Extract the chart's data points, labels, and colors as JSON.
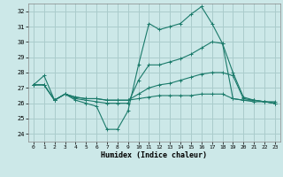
{
  "xlabel": "Humidex (Indice chaleur)",
  "bg_color": "#cce8e8",
  "grid_color": "#aacccc",
  "line_color": "#1a7a6a",
  "xlim": [
    -0.5,
    23.5
  ],
  "ylim": [
    23.5,
    32.5
  ],
  "xticks": [
    0,
    1,
    2,
    3,
    4,
    5,
    6,
    7,
    8,
    9,
    10,
    11,
    12,
    13,
    14,
    15,
    16,
    17,
    18,
    19,
    20,
    21,
    22,
    23
  ],
  "yticks": [
    24,
    25,
    26,
    27,
    28,
    29,
    30,
    31,
    32
  ],
  "lines": [
    {
      "x": [
        0,
        1,
        2,
        3,
        4,
        5,
        6,
        7,
        8,
        9,
        10,
        11,
        12,
        13,
        14,
        15,
        16,
        17,
        18,
        19,
        20,
        21,
        22,
        23
      ],
      "y": [
        27.2,
        27.8,
        26.2,
        26.6,
        26.2,
        26.0,
        25.8,
        24.3,
        24.3,
        25.5,
        28.5,
        31.2,
        30.8,
        31.0,
        31.2,
        31.8,
        32.3,
        31.2,
        29.9,
        28.0,
        26.4,
        26.2,
        26.1,
        26.1
      ],
      "marker": "+"
    },
    {
      "x": [
        0,
        1,
        2,
        3,
        4,
        5,
        6,
        7,
        8,
        9,
        10,
        11,
        12,
        13,
        14,
        15,
        16,
        17,
        18,
        19,
        20,
        21,
        22,
        23
      ],
      "y": [
        27.2,
        27.2,
        26.2,
        26.6,
        26.3,
        26.2,
        26.1,
        26.0,
        26.0,
        26.0,
        27.5,
        28.5,
        28.5,
        28.7,
        28.9,
        29.2,
        29.6,
        30.0,
        29.9,
        26.3,
        26.2,
        26.2,
        26.1,
        26.0
      ],
      "marker": "+"
    },
    {
      "x": [
        0,
        1,
        2,
        3,
        4,
        5,
        6,
        7,
        8,
        9,
        10,
        11,
        12,
        13,
        14,
        15,
        16,
        17,
        18,
        19,
        20,
        21,
        22,
        23
      ],
      "y": [
        27.2,
        27.2,
        26.2,
        26.6,
        26.4,
        26.3,
        26.3,
        26.2,
        26.2,
        26.2,
        26.6,
        27.0,
        27.2,
        27.3,
        27.5,
        27.7,
        27.9,
        28.0,
        28.0,
        27.8,
        26.3,
        26.2,
        26.1,
        26.0
      ],
      "marker": "+"
    },
    {
      "x": [
        0,
        1,
        2,
        3,
        4,
        5,
        6,
        7,
        8,
        9,
        10,
        11,
        12,
        13,
        14,
        15,
        16,
        17,
        18,
        19,
        20,
        21,
        22,
        23
      ],
      "y": [
        27.2,
        27.2,
        26.2,
        26.6,
        26.4,
        26.3,
        26.3,
        26.2,
        26.2,
        26.2,
        26.3,
        26.4,
        26.5,
        26.5,
        26.5,
        26.5,
        26.6,
        26.6,
        26.6,
        26.3,
        26.2,
        26.1,
        26.1,
        26.0
      ],
      "marker": "+"
    }
  ]
}
